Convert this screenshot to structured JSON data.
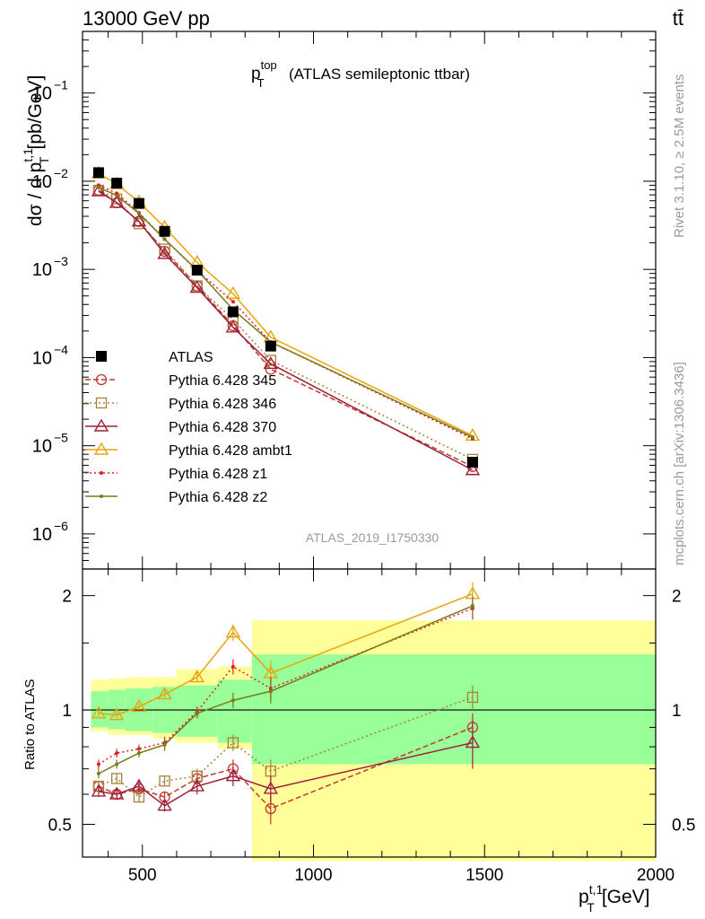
{
  "header": {
    "left": "13000 GeV pp",
    "right": "tt̄"
  },
  "side": {
    "rivet": "Rivet 3.1.10, ≥ 2.5M events",
    "mcplots": "mcplots.cern.ch [arXiv:1306.3436]"
  },
  "watermark": "ATLAS_2019_I1750330",
  "chart_data": [
    {
      "type": "line",
      "title_main": "p",
      "title_sub": "T",
      "title_sup": "top",
      "title_rest": "(ATLAS semileptonic ttbar)",
      "ylabel": "dσ / d p",
      "ylabel_sup": "t,1",
      "ylabel_sub": "T",
      "ylabel_unit": "[pb/GeV]",
      "yscale": "log",
      "xlim": [
        325,
        2000
      ],
      "ylim": [
        4e-07,
        0.5
      ],
      "yticks": [
        {
          "v": 1e-06,
          "base": "10",
          "exp": "−6"
        },
        {
          "v": 1e-05,
          "base": "10",
          "exp": "−5"
        },
        {
          "v": 0.0001,
          "base": "10",
          "exp": "−4"
        },
        {
          "v": 0.001,
          "base": "10",
          "exp": "−3"
        },
        {
          "v": 0.01,
          "base": "10",
          "exp": "−2"
        },
        {
          "v": 0.1,
          "base": "10",
          "exp": "−1"
        }
      ],
      "x": [
        372,
        425,
        490,
        565,
        660,
        765,
        875,
        1465
      ],
      "data": {
        "name": "ATLAS",
        "color": "#000000",
        "values": [
          0.0125,
          0.0095,
          0.0056,
          0.0027,
          0.00098,
          0.00033,
          0.000135,
          6.5e-06
        ]
      },
      "series": [
        {
          "name": "Pythia 6.428 345",
          "color": "#c0392b",
          "marker": "circle",
          "dash": "6,3",
          "values": [
            0.0079,
            0.0057,
            0.0035,
            0.0016,
            0.00065,
            0.00023,
            7.4e-05,
            5.8e-06
          ]
        },
        {
          "name": "Pythia 6.428 346",
          "color": "#a8803c",
          "marker": "square",
          "dash": "2,3",
          "values": [
            0.0079,
            0.0063,
            0.0033,
            0.0017,
            0.00065,
            0.00027,
            9.3e-05,
            7e-06
          ]
        },
        {
          "name": "Pythia 6.428 370",
          "color": "#a01e3c",
          "marker": "triangle",
          "dash": "",
          "values": [
            0.0077,
            0.0057,
            0.0035,
            0.0015,
            0.00062,
            0.00022,
            8.5e-05,
            5.3e-06
          ]
        },
        {
          "name": "Pythia 6.428 ambt1",
          "color": "#e8a40c",
          "marker": "triangle",
          "dash": "",
          "values": [
            0.0123,
            0.0093,
            0.0058,
            0.003,
            0.0012,
            0.00053,
            0.00017,
            1.3e-05
          ]
        },
        {
          "name": "Pythia 6.428 z1",
          "color": "#e02020",
          "marker": "dot",
          "dash": "2,3",
          "values": [
            0.009,
            0.0073,
            0.0044,
            0.0022,
            0.00097,
            0.00043,
            0.00015,
            1.2e-05
          ]
        },
        {
          "name": "Pythia 6.428 z2",
          "color": "#7a7a18",
          "marker": "dot",
          "dash": "",
          "values": [
            0.0085,
            0.0069,
            0.0043,
            0.0022,
            0.00098,
            0.00035,
            0.00015,
            1.25e-05
          ]
        }
      ]
    },
    {
      "type": "line",
      "ylabel": "Ratio to ATLAS",
      "xlabel": "p",
      "xlabel_sup": "t,1",
      "xlabel_sub": "T",
      "xlabel_unit": "[GeV]",
      "yscale": "log",
      "xlim": [
        325,
        2000
      ],
      "ylim": [
        0.41,
        2.35
      ],
      "yticks": [
        0.5,
        1,
        2
      ],
      "xticks": [
        500,
        1000,
        1500,
        2000
      ],
      "bands": [
        {
          "x0": 350,
          "x1": 400,
          "y_in": [
            0.9,
            1.12
          ],
          "y_out": [
            0.88,
            1.2
          ]
        },
        {
          "x0": 400,
          "x1": 450,
          "y_in": [
            0.89,
            1.13
          ],
          "y_out": [
            0.86,
            1.21
          ]
        },
        {
          "x0": 450,
          "x1": 530,
          "y_in": [
            0.88,
            1.14
          ],
          "y_out": [
            0.86,
            1.22
          ]
        },
        {
          "x0": 530,
          "x1": 600,
          "y_in": [
            0.87,
            1.15
          ],
          "y_out": [
            0.84,
            1.22
          ]
        },
        {
          "x0": 600,
          "x1": 720,
          "y_in": [
            0.85,
            1.16
          ],
          "y_out": [
            0.82,
            1.28
          ]
        },
        {
          "x0": 720,
          "x1": 820,
          "y_in": [
            0.82,
            1.2
          ],
          "y_out": [
            0.79,
            1.3
          ]
        },
        {
          "x0": 820,
          "x1": 2000,
          "y_in": [
            0.72,
            1.4
          ],
          "y_out": [
            0.4,
            1.72
          ]
        }
      ],
      "series": [
        {
          "name": "Pythia 6.428 345",
          "values": [
            0.63,
            0.6,
            0.62,
            0.59,
            0.66,
            0.7,
            0.55,
            0.9
          ],
          "err": [
            0.02,
            0.02,
            0.02,
            0.02,
            0.03,
            0.04,
            0.05,
            0.08
          ]
        },
        {
          "name": "Pythia 6.428 346",
          "values": [
            0.63,
            0.66,
            0.59,
            0.65,
            0.67,
            0.82,
            0.69,
            1.08
          ],
          "err": [
            0.02,
            0.02,
            0.02,
            0.02,
            0.03,
            0.04,
            0.05,
            0.08
          ]
        },
        {
          "name": "Pythia 6.428 370",
          "values": [
            0.61,
            0.6,
            0.63,
            0.56,
            0.63,
            0.67,
            0.62,
            0.82
          ],
          "err": [
            0.02,
            0.02,
            0.02,
            0.02,
            0.03,
            0.04,
            0.05,
            0.12
          ]
        },
        {
          "name": "Pythia 6.428 ambt1",
          "values": [
            0.98,
            0.97,
            1.02,
            1.1,
            1.22,
            1.6,
            1.25,
            2.02
          ],
          "err": [
            0.02,
            0.02,
            0.02,
            0.03,
            0.04,
            0.08,
            0.1,
            0.15
          ]
        },
        {
          "name": "Pythia 6.428 z1",
          "values": [
            0.72,
            0.77,
            0.79,
            0.82,
            0.99,
            1.3,
            1.14,
            1.85
          ],
          "err": [
            0.02,
            0.02,
            0.02,
            0.03,
            0.03,
            0.06,
            0.08,
            0.12
          ]
        },
        {
          "name": "Pythia 6.428 z2",
          "values": [
            0.68,
            0.72,
            0.77,
            0.81,
            0.98,
            1.06,
            1.12,
            1.88
          ],
          "err": [
            0.02,
            0.02,
            0.02,
            0.03,
            0.03,
            0.05,
            0.08,
            0.12
          ]
        }
      ]
    }
  ]
}
